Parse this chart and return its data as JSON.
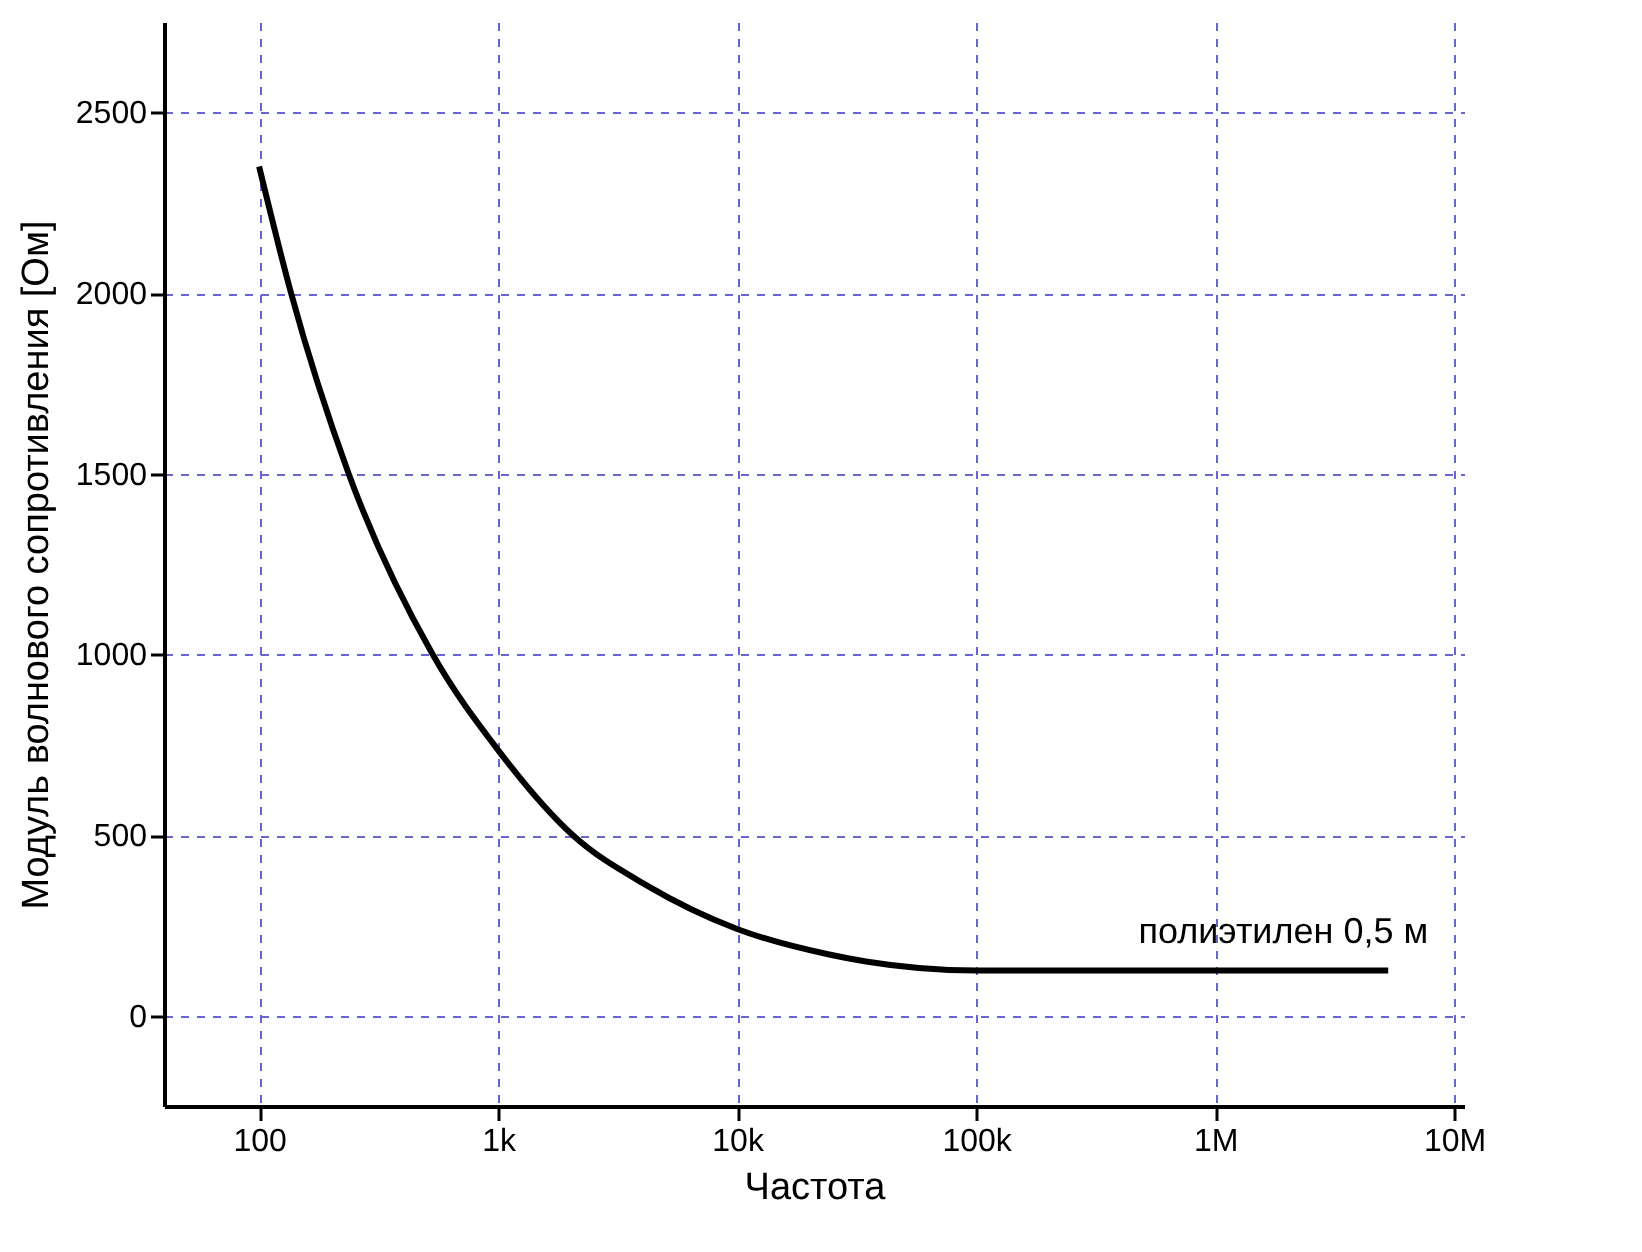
{
  "chart_data": {
    "type": "line",
    "xlabel": "Частота",
    "ylabel": "Модуль волнового сопротивления [Ом]",
    "log": "x",
    "grid": true,
    "line_style": "solid",
    "marker": "none",
    "xlim": [
      40,
      11000000
    ],
    "xticks": [
      100,
      {
        "value": 1000,
        "label": "1k"
      },
      {
        "value": 10000,
        "label": "10k"
      },
      {
        "value": 100000,
        "label": "100k"
      },
      {
        "value": 1000000,
        "label": "1M"
      },
      {
        "value": 10000000,
        "label": "10M"
      }
    ],
    "ylim": [
      -250,
      2750
    ],
    "yticks": [
      0,
      500,
      1000,
      1500,
      2000,
      2500
    ],
    "x": [
      100,
      136,
      237,
      532,
      1000,
      2050,
      4200,
      10000,
      24000,
      34600,
      100000,
      1000000,
      5300000
    ],
    "series": [
      {
        "color": "#000000",
        "values": [
          2350,
          2000,
          1500,
          1000,
          735,
          500,
          360,
          240,
          170,
          150,
          125,
          125,
          125
        ]
      }
    ],
    "annotations": [
      "полиэтилен 0,5 м"
    ]
  }
}
